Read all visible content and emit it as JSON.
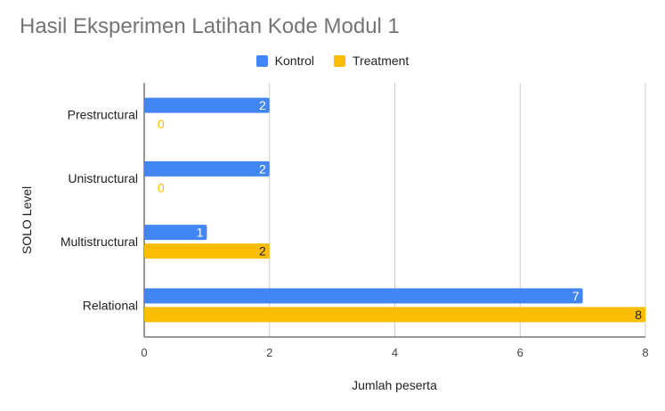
{
  "chart_data": {
    "type": "bar",
    "orientation": "horizontal",
    "title": "Hasil Eksperimen Latihan Kode Modul 1",
    "xlabel": "Jumlah peserta",
    "ylabel": "SOLO Level",
    "categories": [
      "Prestructural",
      "Unistructural",
      "Multistructural",
      "Relational"
    ],
    "series": [
      {
        "name": "Kontrol",
        "values": [
          2,
          2,
          1,
          7
        ],
        "color": "#4285f4"
      },
      {
        "name": "Treatment",
        "values": [
          0,
          0,
          2,
          8
        ],
        "color": "#fbbc04"
      }
    ],
    "xlim": [
      0,
      8
    ],
    "xticks": [
      "0",
      "2",
      "4",
      "6",
      "8"
    ],
    "grid": true,
    "legend_position": "top"
  }
}
